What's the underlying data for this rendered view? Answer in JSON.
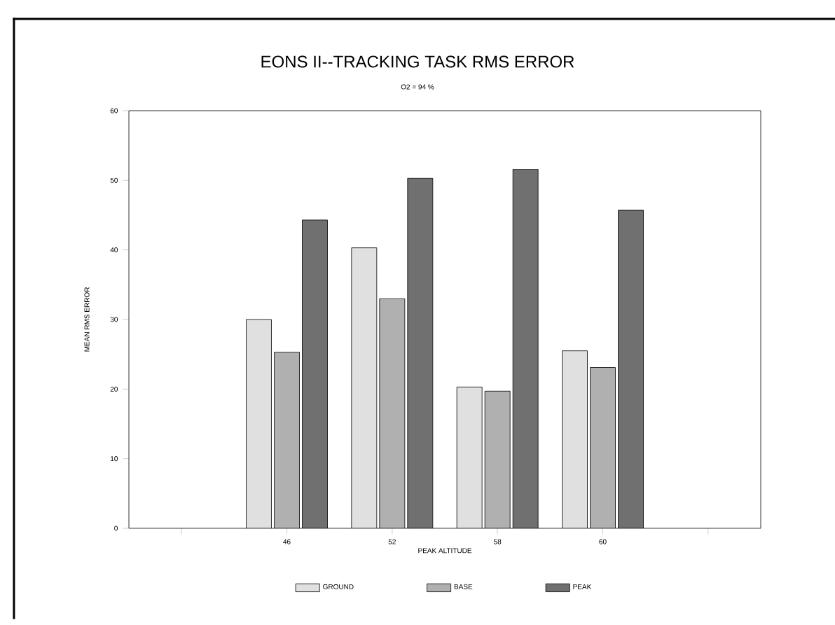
{
  "chart_data": {
    "type": "bar",
    "title": "EONS II--TRACKING TASK RMS ERROR",
    "subtitle": "O2 = 94 %",
    "xlabel": "PEAK ALTITUDE",
    "ylabel": "MEAN RMS ERROR",
    "categories": [
      null,
      "46",
      "52",
      "58",
      "60",
      null
    ],
    "series": [
      {
        "name": "GROUND",
        "color": "#e0e0e0",
        "values": [
          null,
          30,
          40.3,
          20.3,
          25.5,
          null
        ]
      },
      {
        "name": "BASE",
        "color": "#b0b0b0",
        "values": [
          null,
          25.3,
          33,
          19.7,
          23.1,
          null
        ]
      },
      {
        "name": "PEAK",
        "color": "#707070",
        "values": [
          null,
          44.3,
          50.3,
          51.6,
          45.7,
          null
        ]
      }
    ],
    "ylim": [
      0,
      60
    ],
    "yticks": [
      0,
      10,
      20,
      30,
      40,
      50,
      60
    ],
    "grid": false,
    "legend": "bottom"
  }
}
